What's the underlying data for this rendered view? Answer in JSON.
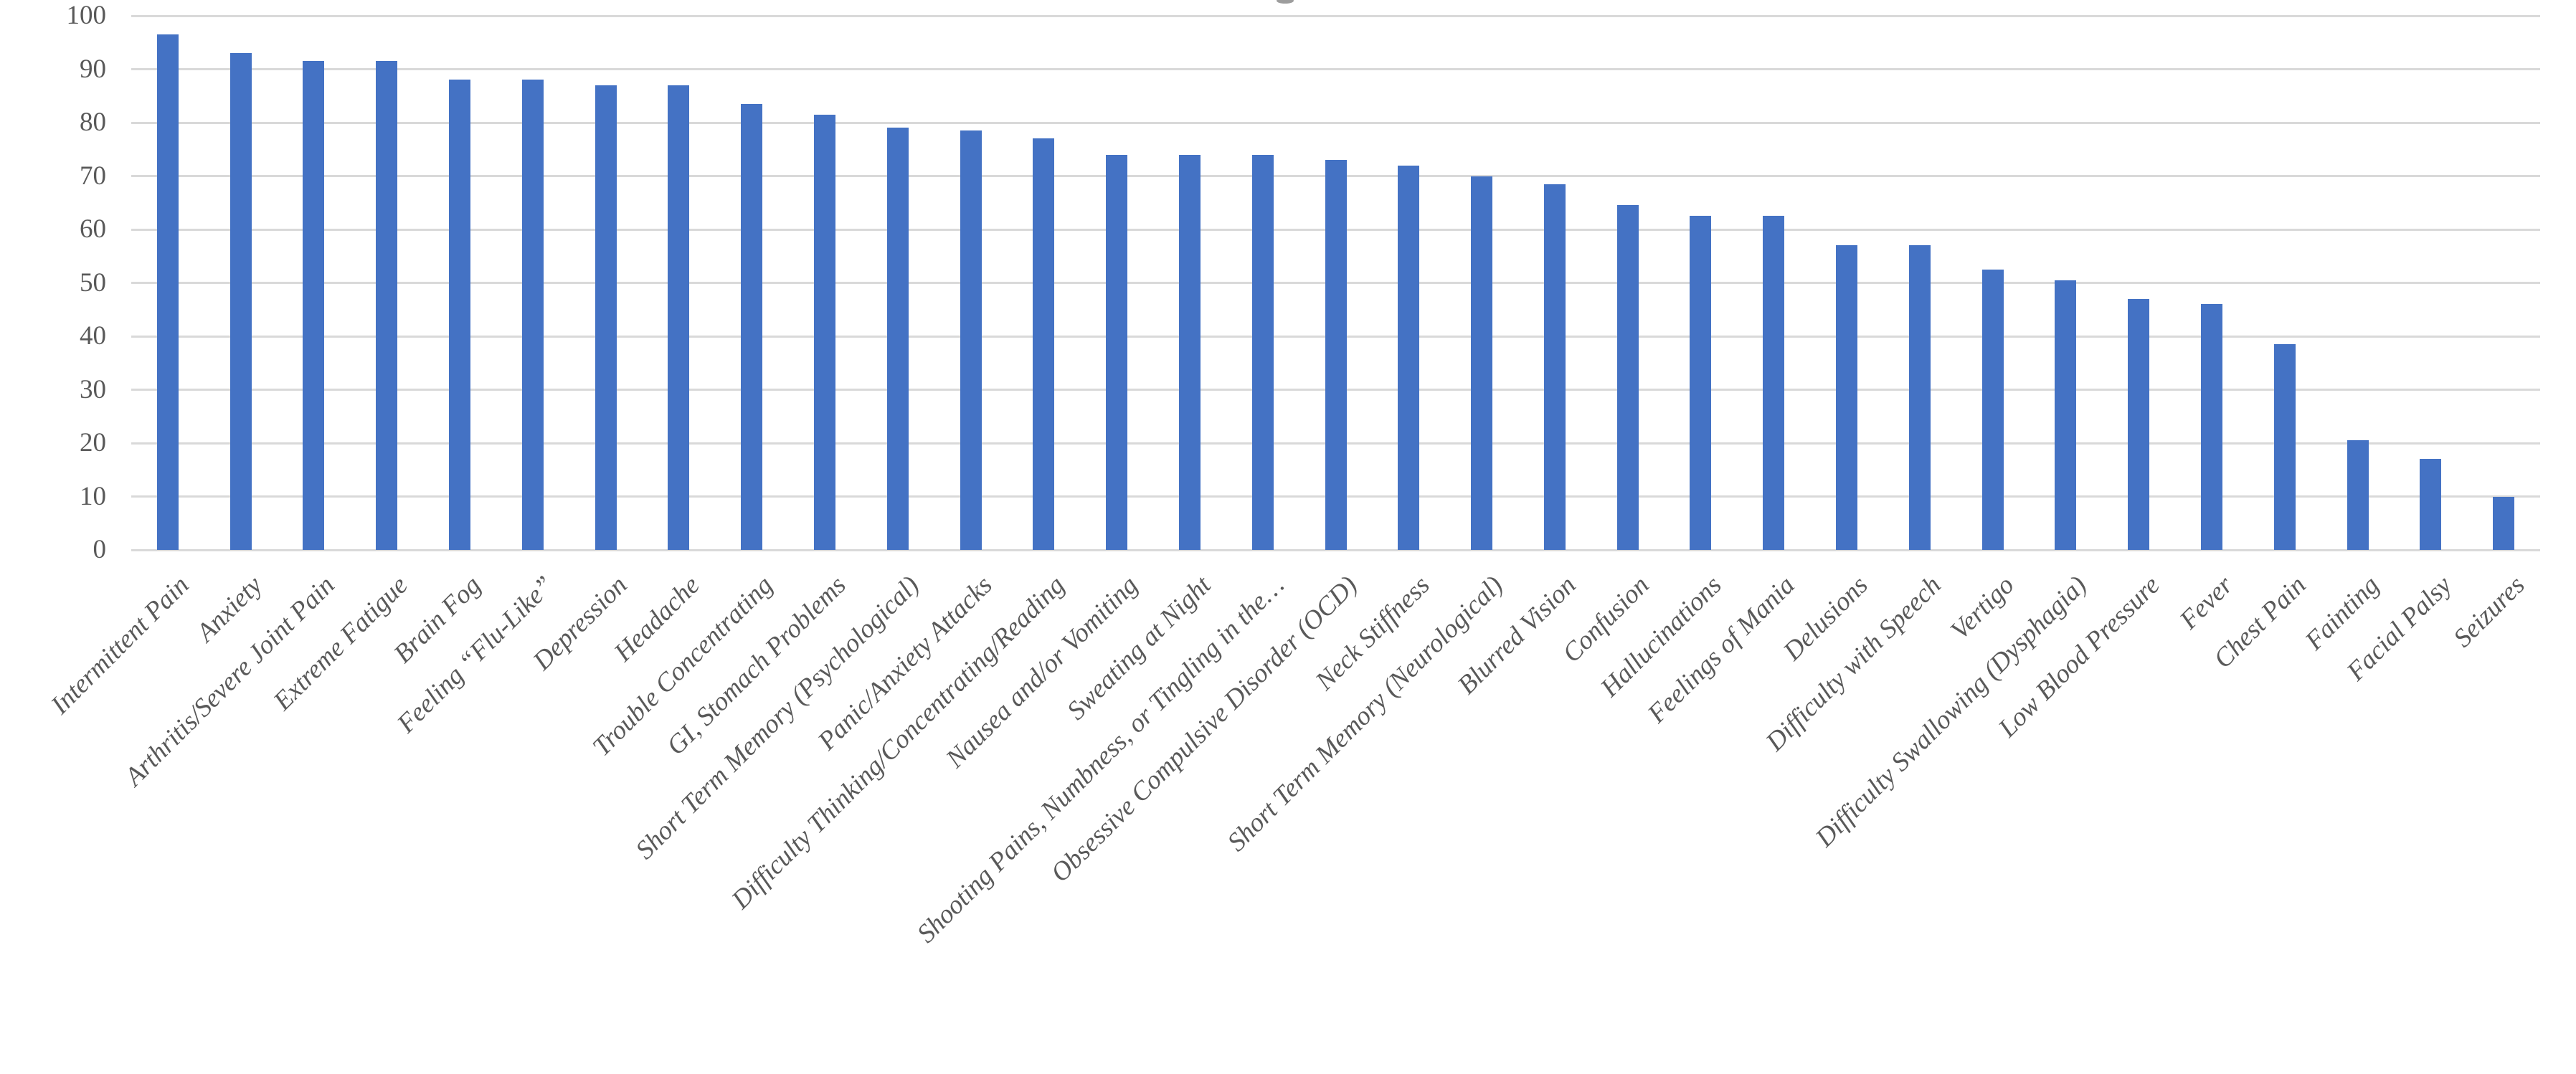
{
  "chart_data": {
    "type": "bar",
    "title": "",
    "categories": [
      "Intermittent Pain",
      "Anxiety",
      "Arthritis/Severe Joint Pain",
      "Extreme Fatigue",
      "Brain Fog",
      "Feeling “Flu-Like”",
      "Depression",
      "Headache",
      "Trouble Concentrating",
      "GI, Stomach Problems",
      "Short Term Memory (Psychological)",
      "Panic/Anxiety Attacks",
      "Difficulty Thinking/Concentrating/Reading",
      "Nausea and/or Vomiting",
      "Sweating at Night",
      "Shooting Pains, Numbness, or Tingling in the…",
      "Obsessive Compulsive Disorder (OCD)",
      "Neck Stiffness",
      "Short Term Memory (Neurological)",
      "Blurred Vision",
      "Confusion",
      "Hallucinations",
      "Feelings of Mania",
      "Delusions",
      "Difficulty with Speech",
      "Vertigo",
      "Difficulty Swallowing (Dysphagia)",
      "Low Blood Pressure",
      "Fever",
      "Chest Pain",
      "Fainting",
      "Facial Palsy",
      "Seizures"
    ],
    "values": [
      96.5,
      93,
      91.5,
      91.5,
      88,
      88,
      87,
      87,
      83.5,
      81.5,
      79,
      78.5,
      77,
      74,
      74,
      74,
      73,
      72,
      70,
      68.5,
      64.5,
      62.5,
      62.5,
      57,
      57,
      52.5,
      50.5,
      47,
      46,
      38.5,
      20.5,
      17,
      10
    ],
    "xlabel": "",
    "ylabel": "",
    "ylim": [
      0,
      100
    ],
    "yticks": [
      0,
      10,
      20,
      30,
      40,
      50,
      60,
      70,
      80,
      90,
      100
    ],
    "grid": "horizontal",
    "legend": "none",
    "x_tick_rotation_deg": 45,
    "colors": {
      "bar": "#4472C4",
      "gridline": "#d9d9d9",
      "tick_label": "#595959",
      "background": "#ffffff"
    }
  }
}
